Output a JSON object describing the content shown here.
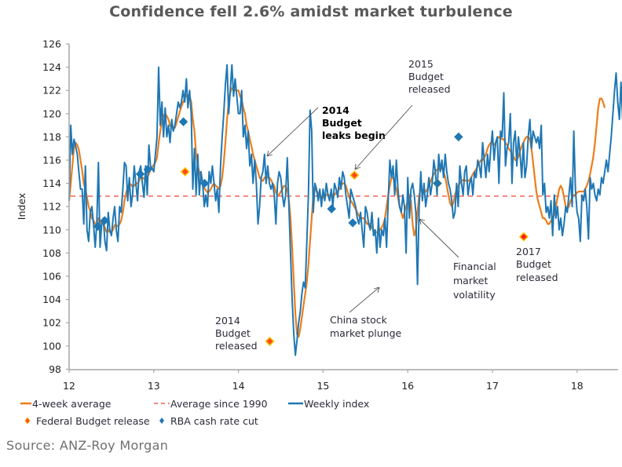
{
  "chart_data": {
    "type": "line",
    "title": "Confidence fell 2.6% amidst market turbulence",
    "xlabel": "",
    "ylabel": "Index",
    "xlim": [
      12,
      18.48
    ],
    "ylim": [
      98,
      126
    ],
    "xticks": [
      "12",
      "13",
      "14",
      "15",
      "16",
      "17",
      "18"
    ],
    "yticks": [
      "98",
      "100",
      "102",
      "104",
      "106",
      "108",
      "110",
      "112",
      "114",
      "116",
      "118",
      "120",
      "122",
      "124",
      "126"
    ],
    "grid": false,
    "legend_position": "bottom",
    "x_start": 12.0,
    "x_step": 0.01923,
    "series": [
      {
        "name": "Weekly index",
        "color": "#1f77b4",
        "values": [
          112.5,
          119.0,
          116.5,
          117.8,
          117.2,
          116.5,
          115.0,
          113.5,
          113.5,
          110.5,
          115.5,
          110.0,
          109.0,
          111.5,
          112.0,
          110.5,
          108.5,
          110.5,
          115.8,
          108.5,
          110.5,
          111.0,
          109.0,
          108.2,
          111.5,
          110.0,
          109.5,
          111.0,
          112.0,
          110.0,
          109.0,
          112.0,
          111.5,
          113.5,
          115.8,
          115.5,
          112.5,
          114.5,
          112.0,
          113.0,
          115.5,
          114.0,
          112.5,
          115.0,
          115.5,
          114.0,
          112.8,
          115.5,
          113.0,
          117.3,
          115.5,
          115.3,
          115.0,
          116.5,
          118.0,
          124.0,
          119.0,
          121.0,
          118.0,
          120.5,
          118.0,
          119.0,
          117.5,
          119.5,
          118.5,
          119.0,
          120.0,
          121.0,
          120.5,
          121.0,
          122.0,
          121.0,
          123.0,
          120.5,
          122.0,
          120.0,
          113.5,
          117.0,
          113.0,
          116.5,
          113.0,
          115.0,
          114.0,
          112.0,
          113.0,
          112.0,
          115.0,
          114.0,
          115.5,
          114.0,
          112.5,
          113.5,
          111.5,
          115.5,
          118.0,
          120.0,
          122.5,
          124.2,
          120.0,
          122.0,
          124.2,
          121.5,
          123.0,
          121.5,
          120.0,
          120.0,
          122.0,
          118.0,
          119.0,
          117.0,
          118.5,
          115.5,
          116.5,
          114.0,
          116.0,
          114.0,
          110.5,
          112.0,
          114.5,
          115.0,
          116.5,
          114.0,
          115.5,
          114.0,
          113.5,
          114.0,
          113.0,
          110.5,
          114.0,
          115.0,
          114.5,
          113.0,
          112.0,
          113.0,
          116.2,
          112.0,
          108.0,
          104.0,
          101.0,
          99.2,
          100.5,
          102.0,
          103.0,
          104.5,
          105.5,
          105.0,
          109.0,
          113.0,
          120.3,
          118.5,
          111.5,
          114.0,
          113.5,
          112.5,
          113.5,
          112.0,
          113.5,
          112.5,
          114.0,
          113.0,
          112.5,
          113.5,
          112.0,
          114.0,
          113.5,
          112.8,
          114.5,
          113.5,
          115.0,
          114.5,
          113.0,
          112.0,
          111.0,
          113.5,
          113.0,
          112.5,
          112.0,
          111.0,
          110.5,
          111.5,
          110.0,
          108.5,
          112.0,
          111.5,
          110.5,
          110.0,
          111.5,
          109.5,
          110.0,
          108.0,
          111.0,
          108.5,
          110.0,
          109.5,
          111.0,
          108.5,
          112.5,
          116.0,
          114.5,
          115.5,
          113.0,
          116.0,
          113.5,
          112.0,
          111.5,
          113.0,
          112.0,
          108.0,
          114.5,
          111.0,
          113.5,
          114.0,
          113.0,
          111.5,
          105.3,
          112.0,
          115.0,
          112.5,
          114.0,
          112.0,
          113.0,
          114.5,
          113.0,
          114.0,
          116.0,
          115.0,
          113.0,
          116.5,
          115.0,
          116.0,
          114.5,
          116.5,
          115.0,
          114.0,
          113.5,
          112.5,
          111.0,
          111.5,
          114.0,
          112.0,
          115.5,
          114.0,
          113.0,
          115.0,
          115.5,
          113.0,
          114.0,
          114.5,
          113.0,
          115.0,
          114.5,
          116.0,
          115.5,
          114.5,
          117.5,
          116.0,
          114.5,
          116.5,
          115.0,
          117.0,
          118.5,
          116.0,
          117.5,
          118.0,
          114.0,
          118.5,
          118.0,
          121.8,
          115.5,
          117.0,
          117.5,
          120.0,
          114.0,
          117.5,
          118.5,
          115.5,
          118.0,
          116.5,
          114.5,
          117.5,
          114.5,
          115.5,
          118.0,
          119.5,
          117.0,
          118.5,
          118.0,
          117.5,
          118.0,
          117.0,
          119.0,
          113.0,
          114.0,
          111.5,
          112.0,
          111.0,
          112.5,
          109.5,
          113.0,
          111.0,
          112.0,
          110.0,
          111.0,
          109.5,
          110.5,
          112.0,
          111.5,
          113.0,
          114.5,
          112.0,
          118.5,
          113.5,
          111.5,
          111.0,
          109.0,
          113.0,
          112.5,
          113.5,
          112.0,
          109.2,
          114.5,
          113.5,
          114.0,
          113.0,
          112.5,
          113.5,
          113.0,
          114.5,
          114.0,
          115.0,
          116.0,
          115.0,
          116.5,
          118.0,
          120.0,
          122.0,
          123.5,
          121.0,
          119.5,
          122.7,
          119.5
        ]
      },
      {
        "name": "4-week average",
        "color": "#ed7d1a",
        "values": [
          112.5,
          114.0,
          115.5,
          117.0,
          117.5,
          117.3,
          116.9,
          116.0,
          115.1,
          114.0,
          113.5,
          112.8,
          112.0,
          111.6,
          111.0,
          110.8,
          110.5,
          110.3,
          111.0,
          110.8,
          110.5,
          110.5,
          110.2,
          109.8,
          110.0,
          109.8,
          109.8,
          110.0,
          110.4,
          110.4,
          110.3,
          110.5,
          110.8,
          111.5,
          112.5,
          113.2,
          113.6,
          114.0,
          113.9,
          113.7,
          113.8,
          114.0,
          114.0,
          114.2,
          114.5,
          114.5,
          114.4,
          114.5,
          114.5,
          114.8,
          115.2,
          115.4,
          115.6,
          115.8,
          116.2,
          117.5,
          118.5,
          119.5,
          119.8,
          120.0,
          119.8,
          119.5,
          119.0,
          118.8,
          118.8,
          118.8,
          119.2,
          119.7,
          120.2,
          120.6,
          121.0,
          121.3,
          121.6,
          121.6,
          121.5,
          121.0,
          119.5,
          118.5,
          116.5,
          115.5,
          115.0,
          114.5,
          114.0,
          113.6,
          113.4,
          113.2,
          113.3,
          113.5,
          113.8,
          114.0,
          113.8,
          113.7,
          113.5,
          113.8,
          114.5,
          115.8,
          117.5,
          119.5,
          121.0,
          121.8,
          122.2,
          122.2,
          122.0,
          122.0,
          122.0,
          121.5,
          121.2,
          120.5,
          120.0,
          119.0,
          118.5,
          117.8,
          117.2,
          116.5,
          116.0,
          115.5,
          115.0,
          114.5,
          114.3,
          114.2,
          114.5,
          114.5,
          114.5,
          114.5,
          114.3,
          114.0,
          113.8,
          113.2,
          113.0,
          113.0,
          113.3,
          113.5,
          113.8,
          113.7,
          113.5,
          112.5,
          111.0,
          108.5,
          105.5,
          102.8,
          101.0,
          100.8,
          101.5,
          102.5,
          103.5,
          104.5,
          105.5,
          107.0,
          109.0,
          111.0,
          113.0,
          113.8,
          113.3,
          113.2,
          113.0,
          112.8,
          112.8,
          112.8,
          113.0,
          113.0,
          113.0,
          113.0,
          113.0,
          113.0,
          113.2,
          113.3,
          113.5,
          113.8,
          114.0,
          114.0,
          113.8,
          113.3,
          112.8,
          112.5,
          112.3,
          112.0,
          111.8,
          111.5,
          111.2,
          111.0,
          111.0,
          111.0,
          110.8,
          110.5,
          110.5,
          110.5,
          110.2,
          110.0,
          109.8,
          109.8,
          109.8,
          110.0,
          110.2,
          110.5,
          111.0,
          112.0,
          113.0,
          113.8,
          114.5,
          114.5,
          114.0,
          113.5,
          112.8,
          112.0,
          111.5,
          111.0,
          111.5,
          112.0,
          112.5,
          113.0,
          112.5,
          110.5,
          109.5,
          110.0,
          111.5,
          113.0,
          113.5,
          113.3,
          113.2,
          113.3,
          113.5,
          113.8,
          114.2,
          114.5,
          114.8,
          115.0,
          115.2,
          115.2,
          115.3,
          115.3,
          115.0,
          114.5,
          113.8,
          113.0,
          112.3,
          112.0,
          112.3,
          113.0,
          113.5,
          113.8,
          114.0,
          114.2,
          114.3,
          114.3,
          114.2,
          114.2,
          114.3,
          114.5,
          114.8,
          115.0,
          115.2,
          115.5,
          115.8,
          116.0,
          116.0,
          116.2,
          116.5,
          117.0,
          117.3,
          117.5,
          117.5,
          117.3,
          117.5,
          117.8,
          118.0,
          118.0,
          117.8,
          117.8,
          117.5,
          117.3,
          117.0,
          116.8,
          116.5,
          116.3,
          116.0,
          116.0,
          116.3,
          116.8,
          117.2,
          117.5,
          117.8,
          118.0,
          118.0,
          117.8,
          117.0,
          115.8,
          114.5,
          113.3,
          112.5,
          112.0,
          111.5,
          111.0,
          111.0,
          110.8,
          110.5,
          110.5,
          110.8,
          111.0,
          111.3,
          112.0,
          112.8,
          113.5,
          113.8,
          113.5,
          112.8,
          112.0,
          111.8,
          112.0,
          112.5,
          112.8,
          113.0,
          113.0,
          113.2,
          113.3,
          113.3,
          113.3,
          113.3,
          113.5,
          113.8,
          114.2,
          114.8,
          115.5,
          116.3,
          117.5,
          119.0,
          120.5,
          121.3,
          121.3,
          121.0,
          120.5
        ]
      },
      {
        "name": "Average since 1990",
        "color": "#f4877a",
        "style": "dashed",
        "value": 112.9
      }
    ],
    "markers": [
      {
        "name": "Federal Budget release",
        "x": 13.37,
        "y": 115.0,
        "color": "#ff4a1c"
      },
      {
        "name": "Federal Budget release",
        "x": 14.37,
        "y": 100.4,
        "color": "#ff4a1c"
      },
      {
        "name": "Federal Budget release",
        "x": 15.37,
        "y": 114.7,
        "color": "#ff4a1c"
      },
      {
        "name": "Federal Budget release",
        "x": 16.35,
        "y": 114.0,
        "color": "#ff4a1c"
      },
      {
        "name": "Federal Budget release",
        "x": 17.37,
        "y": 109.4,
        "color": "#ff2020"
      },
      {
        "name": "RBA cash rate cut",
        "x": 12.34,
        "y": 110.3,
        "color": "#1f77b4"
      },
      {
        "name": "RBA cash rate cut",
        "x": 12.42,
        "y": 110.8,
        "color": "#1f77b4"
      },
      {
        "name": "RBA cash rate cut",
        "x": 12.84,
        "y": 114.8,
        "color": "#1f77b4"
      },
      {
        "name": "RBA cash rate cut",
        "x": 12.93,
        "y": 115.2,
        "color": "#1f77b4"
      },
      {
        "name": "RBA cash rate cut",
        "x": 13.35,
        "y": 119.3,
        "color": "#1f77b4"
      },
      {
        "name": "RBA cash rate cut",
        "x": 13.6,
        "y": 114.0,
        "color": "#1f77b4"
      },
      {
        "name": "RBA cash rate cut",
        "x": 15.1,
        "y": 111.8,
        "color": "#1f77b4"
      },
      {
        "name": "RBA cash rate cut",
        "x": 15.35,
        "y": 110.6,
        "color": "#1f77b4"
      },
      {
        "name": "RBA cash rate cut",
        "x": 16.35,
        "y": 114.0,
        "color": "#1f77b4"
      },
      {
        "name": "RBA cash rate cut",
        "x": 16.6,
        "y": 118.0,
        "color": "#1f77b4"
      }
    ],
    "annotations": [
      {
        "lines": [
          "2014",
          "Budget",
          "leaks begin"
        ],
        "bold": true,
        "arrow_to": [
          14.37,
          116.0
        ]
      },
      {
        "lines": [
          "2015",
          "Budget",
          "released"
        ],
        "bold": false,
        "arrow_to": [
          15.37,
          114.8
        ]
      },
      {
        "lines": [
          "2014",
          "Budget",
          "released"
        ],
        "bold": false
      },
      {
        "lines": [
          "China stock",
          "market plunge"
        ],
        "bold": false,
        "arrow_to": [
          15.9,
          105.3
        ]
      },
      {
        "lines": [
          "Financial",
          "market",
          "volatility"
        ],
        "bold": false,
        "arrow_to": [
          16.15,
          111.1
        ]
      },
      {
        "lines": [
          "2017",
          "Budget",
          "released"
        ],
        "bold": false
      }
    ],
    "legend": [
      {
        "label": "4-week average",
        "kind": "line",
        "color": "#ed7d1a"
      },
      {
        "label": "Average since 1990",
        "kind": "dashed",
        "color": "#f4877a"
      },
      {
        "label": "Weekly index",
        "kind": "line",
        "color": "#1f77b4"
      },
      {
        "label": "Federal Budget release",
        "kind": "diamond",
        "color": "#ff4a1c"
      },
      {
        "label": "RBA cash rate cut",
        "kind": "diamond",
        "color": "#1f77b4"
      }
    ]
  },
  "source": "Source: ANZ-Roy Morgan"
}
